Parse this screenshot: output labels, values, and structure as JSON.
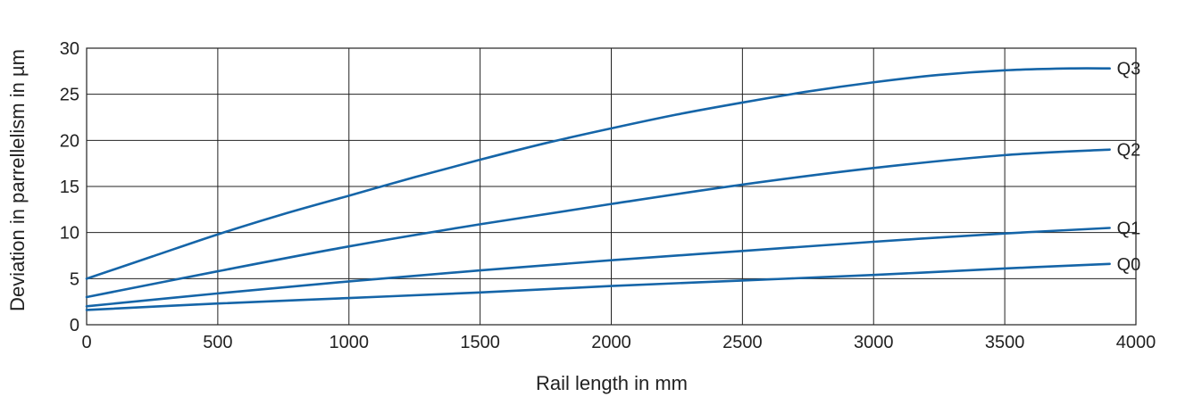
{
  "chart_data": {
    "type": "line",
    "title": "",
    "xlabel": "Rail length in mm",
    "ylabel": "Deviation in parrellelism in µm",
    "xlim": [
      0,
      4000
    ],
    "ylim": [
      0,
      30
    ],
    "x_ticks": [
      0,
      500,
      1000,
      1500,
      2000,
      2500,
      3000,
      3500,
      4000
    ],
    "y_ticks": [
      0,
      5,
      10,
      15,
      20,
      25,
      30
    ],
    "grid": true,
    "line_color": "#1565a8",
    "grid_color": "#222222",
    "series": [
      {
        "name": "Q3",
        "x": [
          0,
          250,
          500,
          750,
          1000,
          1250,
          1500,
          1750,
          2000,
          2250,
          2500,
          2750,
          3000,
          3250,
          3500,
          3750,
          3900
        ],
        "y": [
          5,
          7.4,
          9.8,
          12,
          14,
          16,
          17.9,
          19.7,
          21.3,
          22.8,
          24.1,
          25.3,
          26.3,
          27.1,
          27.6,
          27.8,
          27.8
        ]
      },
      {
        "name": "Q2",
        "x": [
          0,
          500,
          1000,
          1500,
          2000,
          2500,
          3000,
          3500,
          3900
        ],
        "y": [
          3,
          5.8,
          8.5,
          10.9,
          13.1,
          15.2,
          17,
          18.4,
          19
        ]
      },
      {
        "name": "Q1",
        "x": [
          0,
          500,
          1000,
          1500,
          2000,
          2500,
          3000,
          3500,
          3900
        ],
        "y": [
          2,
          3.4,
          4.7,
          5.9,
          7,
          8,
          9,
          9.9,
          10.5
        ]
      },
      {
        "name": "Q0",
        "x": [
          0,
          500,
          1000,
          1500,
          2000,
          2500,
          3000,
          3500,
          3900
        ],
        "y": [
          1.6,
          2.3,
          2.9,
          3.5,
          4.2,
          4.8,
          5.4,
          6.1,
          6.6
        ]
      }
    ]
  }
}
